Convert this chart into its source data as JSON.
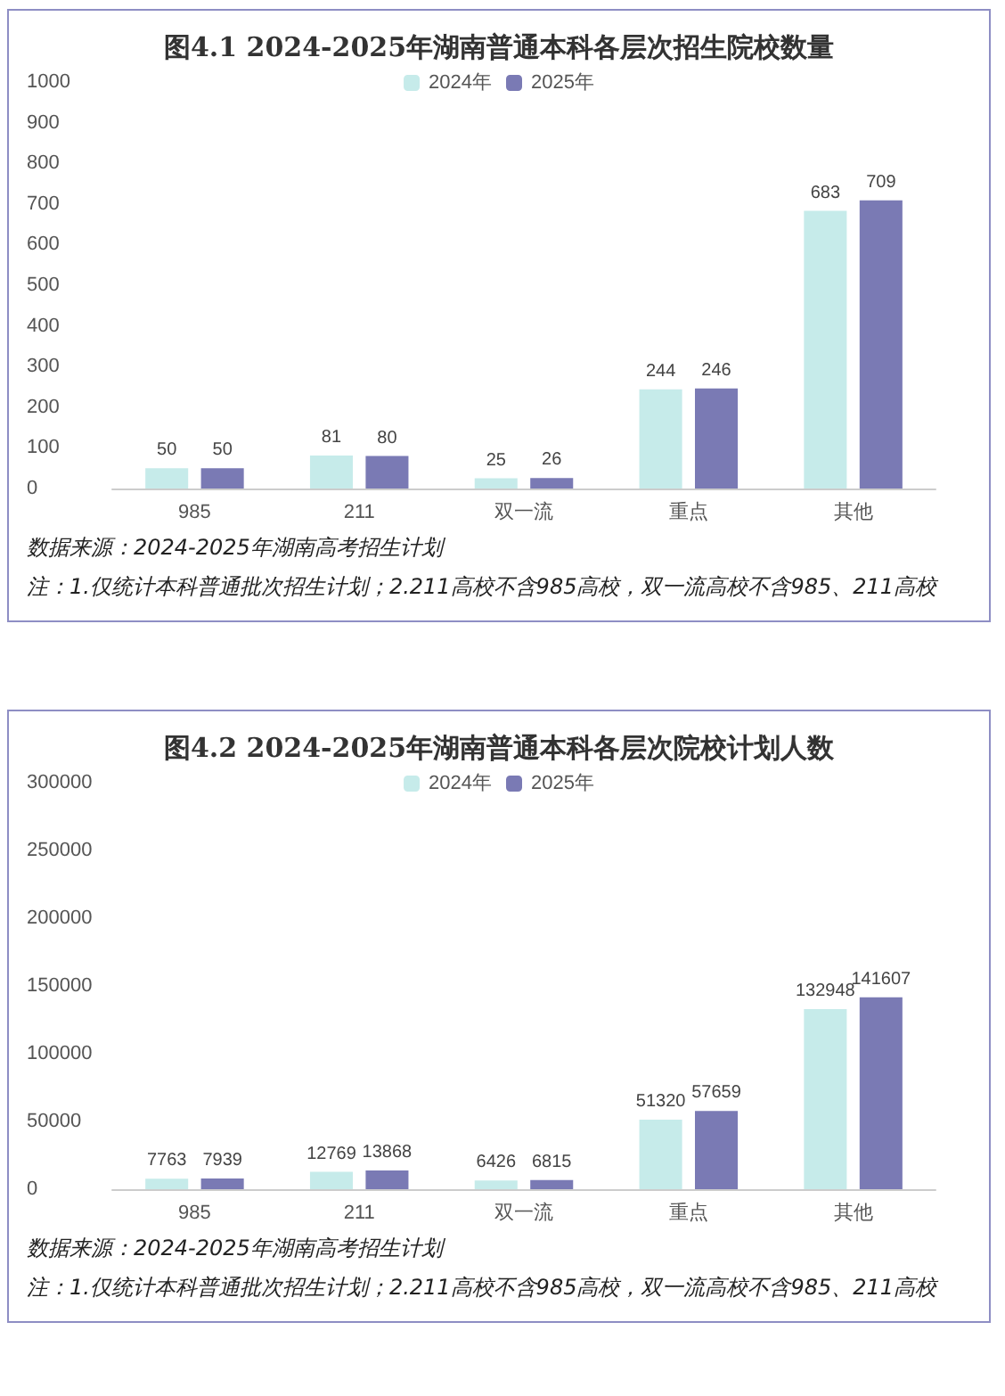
{
  "chart_data": [
    {
      "type": "bar",
      "title": "图4.1 2024-2025年湖南普通本科各层次招生院校数量",
      "categories": [
        "985",
        "211",
        "双一流",
        "重点",
        "其他"
      ],
      "series": [
        {
          "name": "2024年",
          "color": "#c6ebea",
          "values": [
            50,
            81,
            25,
            244,
            683
          ]
        },
        {
          "name": "2025年",
          "color": "#7a7ab4",
          "values": [
            50,
            80,
            26,
            246,
            709
          ]
        }
      ],
      "ylim": [
        0,
        1000
      ],
      "yticks": [
        0,
        100,
        200,
        300,
        400,
        500,
        600,
        700,
        800,
        900,
        1000
      ],
      "grid": false,
      "legend": "top",
      "data_labels": true,
      "annotations": [
        "数据来源：2024-2025年湖南高考招生计划",
        "注：1.仅统计本科普通批次招生计划；2.211高校不含985高校，双一流高校不含985、211高校"
      ]
    },
    {
      "type": "bar",
      "title": "图4.2 2024-2025年湖南普通本科各层次院校计划人数",
      "categories": [
        "985",
        "211",
        "双一流",
        "重点",
        "其他"
      ],
      "series": [
        {
          "name": "2024年",
          "color": "#c6ebea",
          "values": [
            7763,
            12769,
            6426,
            51320,
            132948
          ]
        },
        {
          "name": "2025年",
          "color": "#7a7ab4",
          "values": [
            7939,
            13868,
            6815,
            57659,
            141607
          ]
        }
      ],
      "ylim": [
        0,
        300000
      ],
      "yticks": [
        0,
        50000,
        100000,
        150000,
        200000,
        250000,
        300000
      ],
      "grid": false,
      "legend": "top",
      "data_labels": true,
      "annotations": [
        "数据来源：2024-2025年湖南高考招生计划",
        "注：1.仅统计本科普通批次招生计划；2.211高校不含985高校，双一流高校不含985、211高校"
      ]
    }
  ]
}
